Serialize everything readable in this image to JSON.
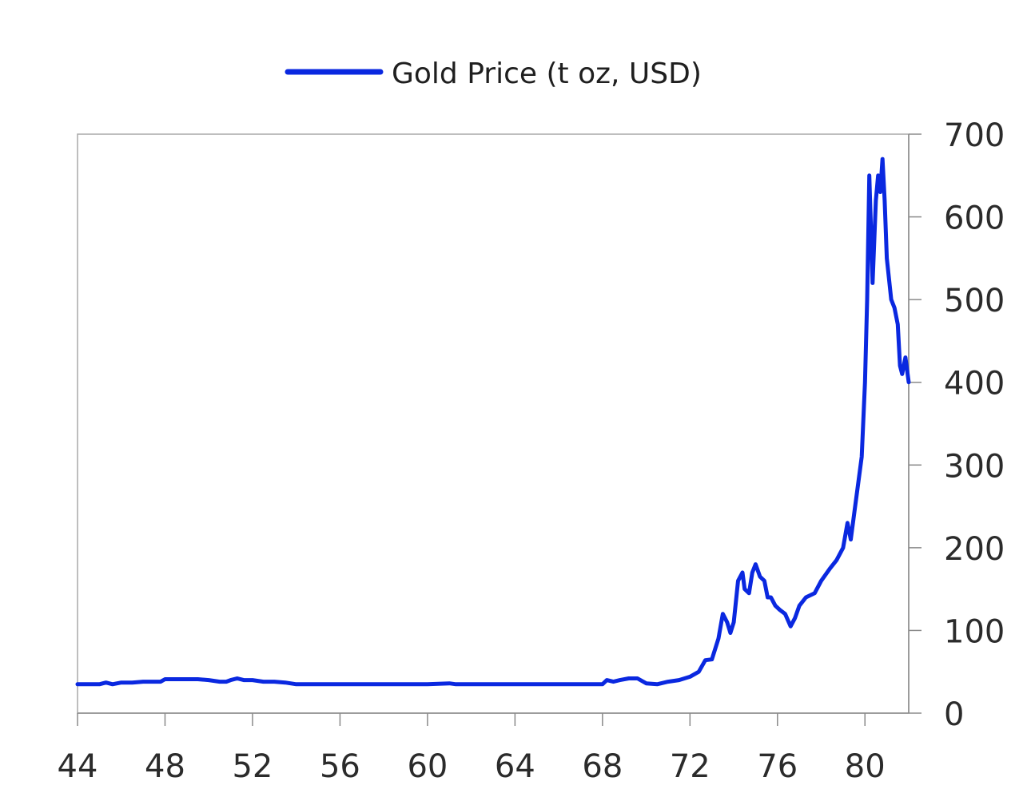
{
  "chart_data": {
    "type": "line",
    "title": "",
    "xlabel": "",
    "ylabel": "",
    "xlim": [
      1944,
      1982
    ],
    "ylim": [
      0,
      700
    ],
    "x_ticks": [
      1944,
      1948,
      1952,
      1956,
      1960,
      1964,
      1968,
      1972,
      1976,
      1980
    ],
    "x_tick_labels": [
      "44",
      "48",
      "52",
      "56",
      "60",
      "64",
      "68",
      "72",
      "76",
      "80"
    ],
    "y_ticks": [
      0,
      100,
      200,
      300,
      400,
      500,
      600,
      700
    ],
    "y_tick_labels": [
      "0",
      "100",
      "200",
      "300",
      "400",
      "500",
      "600",
      "700"
    ],
    "y_axis_side": "right",
    "legend_position": "top-center",
    "grid": false,
    "series": [
      {
        "name": "Gold Price (t oz, USD)",
        "color": "#0a28e0",
        "points": [
          [
            1944.0,
            35
          ],
          [
            1945.0,
            35
          ],
          [
            1945.3,
            37
          ],
          [
            1945.6,
            35
          ],
          [
            1946.0,
            37
          ],
          [
            1946.5,
            37
          ],
          [
            1947.0,
            38
          ],
          [
            1947.5,
            38
          ],
          [
            1947.8,
            38
          ],
          [
            1948.0,
            41
          ],
          [
            1948.5,
            41
          ],
          [
            1949.0,
            41
          ],
          [
            1949.5,
            41
          ],
          [
            1950.0,
            40
          ],
          [
            1950.5,
            38
          ],
          [
            1950.8,
            38
          ],
          [
            1951.0,
            40
          ],
          [
            1951.3,
            42
          ],
          [
            1951.6,
            40
          ],
          [
            1952.0,
            40
          ],
          [
            1952.5,
            38
          ],
          [
            1953.0,
            38
          ],
          [
            1953.5,
            37
          ],
          [
            1954.0,
            35
          ],
          [
            1956.0,
            35
          ],
          [
            1958.0,
            35
          ],
          [
            1960.0,
            35
          ],
          [
            1961.0,
            36
          ],
          [
            1961.3,
            35
          ],
          [
            1964.0,
            35
          ],
          [
            1966.0,
            35
          ],
          [
            1968.0,
            35
          ],
          [
            1968.2,
            40
          ],
          [
            1968.5,
            38
          ],
          [
            1968.8,
            40
          ],
          [
            1969.2,
            42
          ],
          [
            1969.6,
            42
          ],
          [
            1970.0,
            36
          ],
          [
            1970.5,
            35
          ],
          [
            1971.0,
            38
          ],
          [
            1971.5,
            40
          ],
          [
            1972.0,
            44
          ],
          [
            1972.4,
            50
          ],
          [
            1972.7,
            64
          ],
          [
            1973.0,
            65
          ],
          [
            1973.3,
            90
          ],
          [
            1973.5,
            120
          ],
          [
            1973.7,
            110
          ],
          [
            1973.85,
            97
          ],
          [
            1974.0,
            110
          ],
          [
            1974.2,
            160
          ],
          [
            1974.4,
            170
          ],
          [
            1974.5,
            150
          ],
          [
            1974.7,
            145
          ],
          [
            1974.85,
            170
          ],
          [
            1975.0,
            180
          ],
          [
            1975.2,
            165
          ],
          [
            1975.4,
            160
          ],
          [
            1975.55,
            140
          ],
          [
            1975.7,
            140
          ],
          [
            1975.9,
            130
          ],
          [
            1976.1,
            125
          ],
          [
            1976.35,
            120
          ],
          [
            1976.6,
            105
          ],
          [
            1976.8,
            115
          ],
          [
            1977.0,
            130
          ],
          [
            1977.3,
            140
          ],
          [
            1977.7,
            145
          ],
          [
            1978.0,
            160
          ],
          [
            1978.4,
            175
          ],
          [
            1978.7,
            185
          ],
          [
            1979.0,
            200
          ],
          [
            1979.2,
            230
          ],
          [
            1979.35,
            210
          ],
          [
            1979.5,
            240
          ],
          [
            1979.7,
            280
          ],
          [
            1979.85,
            310
          ],
          [
            1980.0,
            400
          ],
          [
            1980.1,
            500
          ],
          [
            1980.2,
            650
          ],
          [
            1980.35,
            520
          ],
          [
            1980.5,
            620
          ],
          [
            1980.6,
            650
          ],
          [
            1980.7,
            630
          ],
          [
            1980.8,
            670
          ],
          [
            1980.9,
            620
          ],
          [
            1981.0,
            550
          ],
          [
            1981.2,
            500
          ],
          [
            1981.35,
            490
          ],
          [
            1981.5,
            470
          ],
          [
            1981.6,
            420
          ],
          [
            1981.7,
            410
          ],
          [
            1981.85,
            430
          ],
          [
            1982.0,
            400
          ]
        ]
      }
    ]
  }
}
